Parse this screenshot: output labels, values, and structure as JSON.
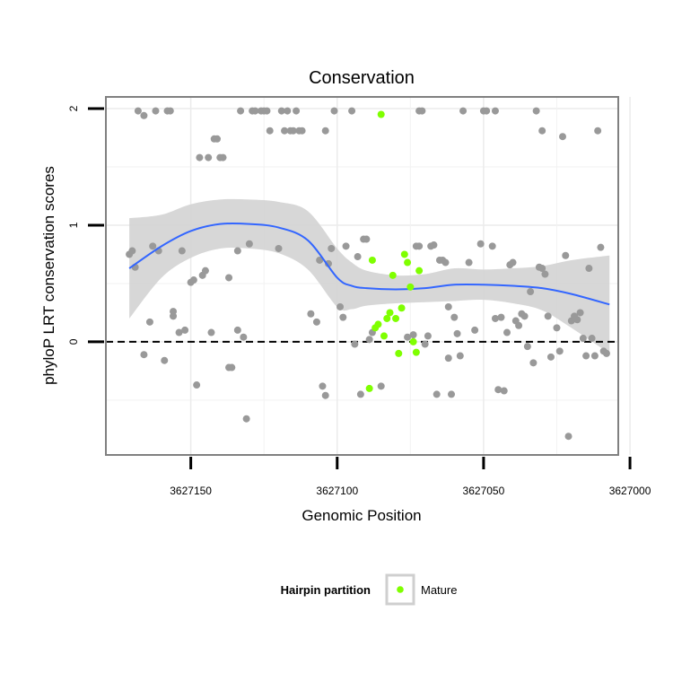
{
  "chart_data": {
    "type": "scatter",
    "title": "Conservation",
    "xlabel": "Genomic Position",
    "ylabel": "phyloP LRT conservation scores",
    "x_reversed": true,
    "xlim": [
      3627179,
      3627004
    ],
    "ylim": [
      -0.97,
      2.1
    ],
    "x_ticks": [
      3627150,
      3627100,
      3627050,
      3627000
    ],
    "x_tick_labels": [
      "3627150",
      "3627100",
      "3627050",
      "3627000"
    ],
    "y_ticks": [
      0,
      1,
      2
    ],
    "y_tick_labels": [
      "0",
      "1",
      "2"
    ],
    "reference_line": {
      "y": 0,
      "style": "dashed"
    },
    "grid": true,
    "legend": {
      "title": "Hairpin partition",
      "position": "bottom",
      "entries": [
        "Mature"
      ]
    },
    "colors": {
      "other": "#999999",
      "mature": "#7FFF00",
      "smooth": "#3366FF",
      "band": "#D3D3D3"
    },
    "series": [
      {
        "group": "other",
        "points": [
          [
            3627171,
            0.75
          ],
          [
            3627170,
            0.78
          ],
          [
            3627169,
            0.64
          ],
          [
            3627168,
            1.98
          ],
          [
            3627166,
            1.94
          ],
          [
            3627166,
            -0.11
          ],
          [
            3627164,
            0.17
          ],
          [
            3627163,
            0.82
          ],
          [
            3627162,
            1.98
          ],
          [
            3627161,
            0.78
          ],
          [
            3627159,
            -0.16
          ],
          [
            3627158,
            1.98
          ],
          [
            3627157,
            1.98
          ],
          [
            3627156,
            0.22
          ],
          [
            3627156,
            0.26
          ],
          [
            3627154,
            0.08
          ],
          [
            3627153,
            0.78
          ],
          [
            3627152,
            0.1
          ],
          [
            3627150,
            0.51
          ],
          [
            3627149,
            0.53
          ],
          [
            3627148,
            -0.37
          ],
          [
            3627147,
            1.58
          ],
          [
            3627146,
            0.57
          ],
          [
            3627145,
            0.61
          ],
          [
            3627144,
            1.58
          ],
          [
            3627143,
            0.08
          ],
          [
            3627142,
            1.74
          ],
          [
            3627141,
            1.74
          ],
          [
            3627140,
            1.58
          ],
          [
            3627139,
            1.58
          ],
          [
            3627137,
            0.55
          ],
          [
            3627137,
            -0.22
          ],
          [
            3627136,
            -0.22
          ],
          [
            3627134,
            0.78
          ],
          [
            3627134,
            0.1
          ],
          [
            3627133,
            1.98
          ],
          [
            3627132,
            0.04
          ],
          [
            3627131,
            -0.66
          ],
          [
            3627130,
            0.84
          ],
          [
            3627129,
            1.98
          ],
          [
            3627128,
            1.98
          ],
          [
            3627126,
            1.98
          ],
          [
            3627125,
            1.98
          ],
          [
            3627124,
            1.98
          ],
          [
            3627123,
            1.81
          ],
          [
            3627120,
            0.8
          ],
          [
            3627119,
            1.98
          ],
          [
            3627118,
            1.81
          ],
          [
            3627117,
            1.98
          ],
          [
            3627116,
            1.81
          ],
          [
            3627115,
            1.81
          ],
          [
            3627114,
            1.98
          ],
          [
            3627113,
            1.81
          ],
          [
            3627112,
            1.81
          ],
          [
            3627109,
            0.24
          ],
          [
            3627107,
            0.17
          ],
          [
            3627106,
            0.7
          ],
          [
            3627105,
            -0.38
          ],
          [
            3627104,
            -0.46
          ],
          [
            3627104,
            1.81
          ],
          [
            3627103,
            0.67
          ],
          [
            3627102,
            0.8
          ],
          [
            3627101,
            1.98
          ],
          [
            3627099,
            0.3
          ],
          [
            3627098,
            0.21
          ],
          [
            3627097,
            0.82
          ],
          [
            3627095,
            1.98
          ],
          [
            3627094,
            -0.02
          ],
          [
            3627093,
            0.73
          ],
          [
            3627092,
            -0.45
          ],
          [
            3627091,
            0.88
          ],
          [
            3627090,
            0.88
          ],
          [
            3627089,
            0.02
          ],
          [
            3627088,
            0.08
          ],
          [
            3627085,
            -0.38
          ],
          [
            3627076,
            0.04
          ],
          [
            3627074,
            0.06
          ],
          [
            3627073,
            0.82
          ],
          [
            3627072,
            0.82
          ],
          [
            3627072,
            1.98
          ],
          [
            3627071,
            1.98
          ],
          [
            3627070,
            -0.02
          ],
          [
            3627069,
            0.05
          ],
          [
            3627068,
            0.82
          ],
          [
            3627067,
            0.83
          ],
          [
            3627066,
            -0.45
          ],
          [
            3627065,
            0.7
          ],
          [
            3627064,
            0.7
          ],
          [
            3627063,
            0.68
          ],
          [
            3627062,
            0.3
          ],
          [
            3627062,
            -0.14
          ],
          [
            3627061,
            -0.45
          ],
          [
            3627060,
            0.21
          ],
          [
            3627059,
            0.07
          ],
          [
            3627058,
            -0.12
          ],
          [
            3627057,
            1.98
          ],
          [
            3627055,
            0.68
          ],
          [
            3627053,
            0.1
          ],
          [
            3627051,
            0.84
          ],
          [
            3627050,
            1.98
          ],
          [
            3627049,
            1.98
          ],
          [
            3627047,
            0.82
          ],
          [
            3627046,
            1.98
          ],
          [
            3627046,
            0.2
          ],
          [
            3627045,
            -0.41
          ],
          [
            3627044,
            0.21
          ],
          [
            3627043,
            -0.42
          ],
          [
            3627042,
            0.08
          ],
          [
            3627041,
            0.66
          ],
          [
            3627040,
            0.68
          ],
          [
            3627039,
            0.18
          ],
          [
            3627038,
            0.14
          ],
          [
            3627037,
            0.24
          ],
          [
            3627036,
            0.22
          ],
          [
            3627035,
            -0.04
          ],
          [
            3627034,
            0.43
          ],
          [
            3627033,
            -0.18
          ],
          [
            3627032,
            1.98
          ],
          [
            3627031,
            0.64
          ],
          [
            3627030,
            0.63
          ],
          [
            3627030,
            1.81
          ],
          [
            3627029,
            0.58
          ],
          [
            3627028,
            0.22
          ],
          [
            3627027,
            -0.13
          ],
          [
            3627025,
            0.12
          ],
          [
            3627024,
            -0.08
          ],
          [
            3627023,
            1.76
          ],
          [
            3627022,
            0.74
          ],
          [
            3627021,
            -0.81
          ],
          [
            3627020,
            0.18
          ],
          [
            3627019,
            0.22
          ],
          [
            3627018,
            0.19
          ],
          [
            3627017,
            0.25
          ],
          [
            3627016,
            0.03
          ],
          [
            3627015,
            -0.12
          ],
          [
            3627014,
            0.63
          ],
          [
            3627013,
            0.03
          ],
          [
            3627012,
            -0.12
          ],
          [
            3627011,
            1.81
          ],
          [
            3627010,
            0.81
          ],
          [
            3627009,
            -0.08
          ],
          [
            3627008,
            -0.1
          ]
        ]
      },
      {
        "group": "mature",
        "name": "Mature",
        "points": [
          [
            3627089,
            -0.4
          ],
          [
            3627088,
            0.7
          ],
          [
            3627087,
            0.12
          ],
          [
            3627086,
            0.15
          ],
          [
            3627085,
            1.95
          ],
          [
            3627084,
            0.05
          ],
          [
            3627083,
            0.2
          ],
          [
            3627082,
            0.25
          ],
          [
            3627081,
            0.57
          ],
          [
            3627080,
            0.2
          ],
          [
            3627079,
            -0.1
          ],
          [
            3627078,
            0.29
          ],
          [
            3627077,
            0.75
          ],
          [
            3627076,
            0.68
          ],
          [
            3627075,
            0.47
          ],
          [
            3627074,
            0.0
          ],
          [
            3627073,
            -0.09
          ],
          [
            3627072,
            0.61
          ]
        ]
      }
    ],
    "smooth": {
      "x": [
        3627171,
        3627160,
        3627150,
        3627140,
        3627130,
        3627120,
        3627110,
        3627100,
        3627095,
        3627090,
        3627080,
        3627070,
        3627060,
        3627050,
        3627040,
        3627030,
        3627020,
        3627007
      ],
      "y": [
        0.63,
        0.82,
        0.95,
        1.01,
        1.01,
        0.98,
        0.87,
        0.55,
        0.48,
        0.46,
        0.45,
        0.46,
        0.49,
        0.49,
        0.48,
        0.46,
        0.41,
        0.32
      ],
      "se_lower": [
        0.2,
        0.55,
        0.72,
        0.8,
        0.8,
        0.76,
        0.62,
        0.3,
        0.28,
        0.31,
        0.33,
        0.34,
        0.35,
        0.36,
        0.33,
        0.27,
        0.12,
        -0.1
      ],
      "se_upper": [
        1.06,
        1.09,
        1.18,
        1.22,
        1.22,
        1.2,
        1.12,
        0.8,
        0.68,
        0.61,
        0.57,
        0.58,
        0.63,
        0.62,
        0.63,
        0.65,
        0.7,
        0.74
      ]
    }
  }
}
